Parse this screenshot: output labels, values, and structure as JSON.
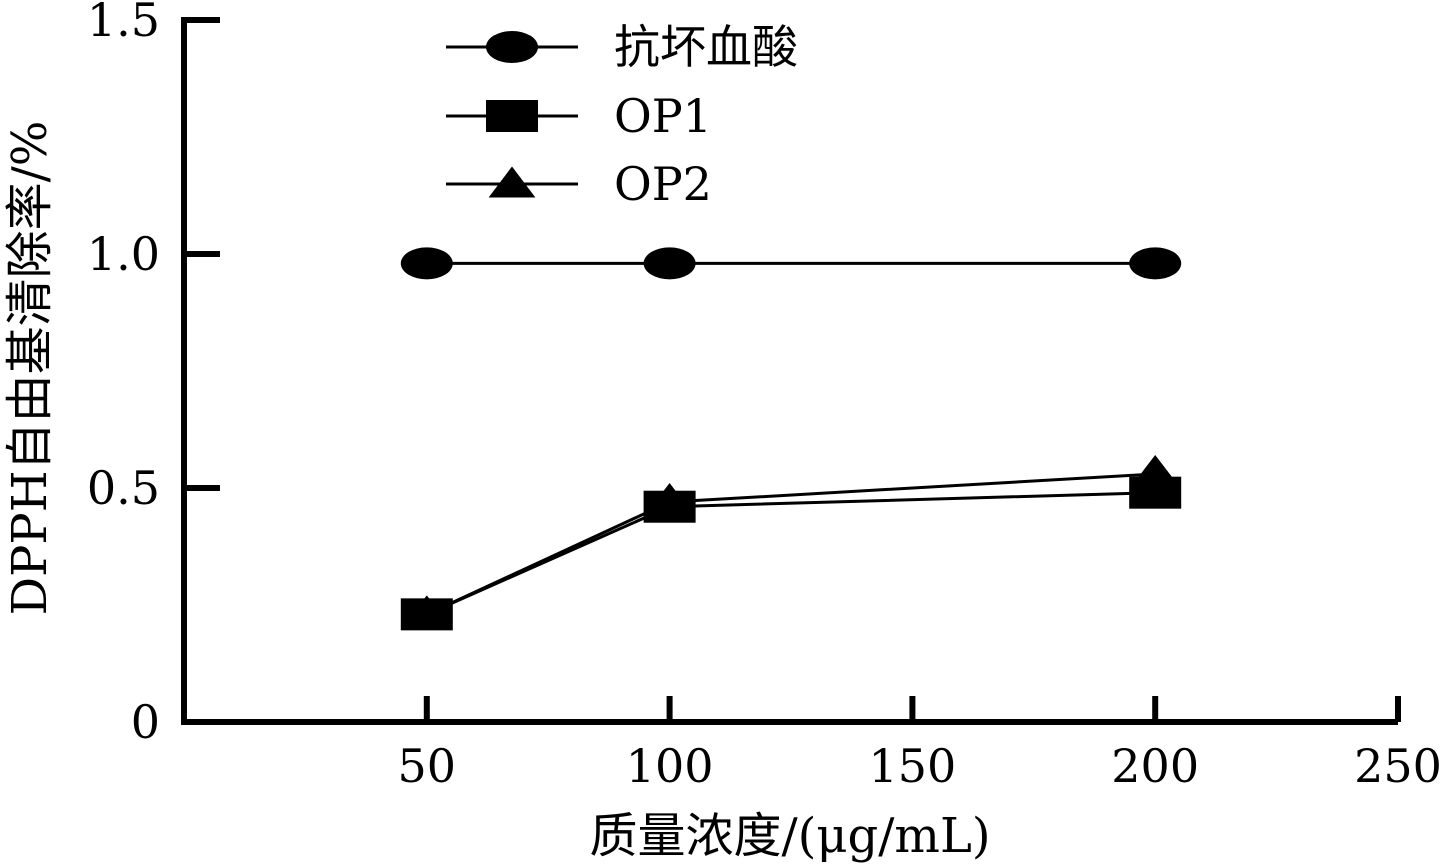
{
  "chart_data": {
    "type": "line",
    "xlabel": "质量浓度/(μg/mL)",
    "ylabel": "DPPH自由基清除率/%",
    "xlim": [
      0,
      250
    ],
    "ylim": [
      0,
      1.5
    ],
    "x_ticks": [
      50,
      100,
      150,
      200,
      250
    ],
    "x_tick_labels": [
      "50",
      "100",
      "150",
      "200",
      "250"
    ],
    "y_ticks": [
      0,
      0.5,
      1.0,
      1.5
    ],
    "y_tick_labels": [
      "0",
      "0.5",
      "1.0",
      "1.5"
    ],
    "x": [
      50,
      100,
      200
    ],
    "legend_position": "top",
    "grid": false,
    "series": [
      {
        "name": "抗坏血酸",
        "marker": "ellipse",
        "values": [
          0.98,
          0.98,
          0.98
        ]
      },
      {
        "name": "OP1",
        "marker": "square",
        "values": [
          0.23,
          0.46,
          0.49
        ]
      },
      {
        "name": "OP2",
        "marker": "triangle",
        "values": [
          0.23,
          0.47,
          0.53
        ]
      }
    ]
  }
}
